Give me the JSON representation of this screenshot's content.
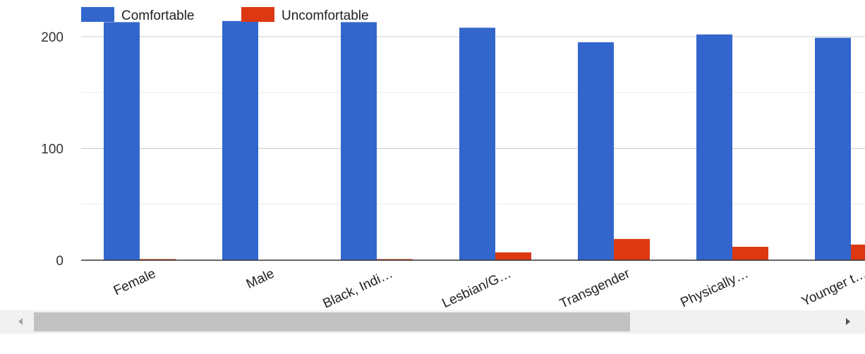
{
  "chart_data": {
    "type": "bar",
    "categories": [
      "Female",
      "Male",
      "Black, Indi…",
      "Lesbian/G…",
      "Transgender",
      "Physically…",
      "Younger t…"
    ],
    "series": [
      {
        "name": "Comfortable",
        "color": "#3366cc",
        "values": [
          213,
          214,
          213,
          208,
          195,
          202,
          199
        ]
      },
      {
        "name": "Uncomfortable",
        "color": "#dc3912",
        "values": [
          1,
          0,
          1,
          7,
          19,
          12,
          14
        ]
      }
    ],
    "yticks": [
      0,
      100,
      200
    ],
    "ylim": [
      0,
      220
    ],
    "grid": true,
    "legend_position": "top-left"
  },
  "scrollbar": {
    "left_arrow": "left-arrow-icon",
    "right_arrow": "right-arrow-icon"
  }
}
